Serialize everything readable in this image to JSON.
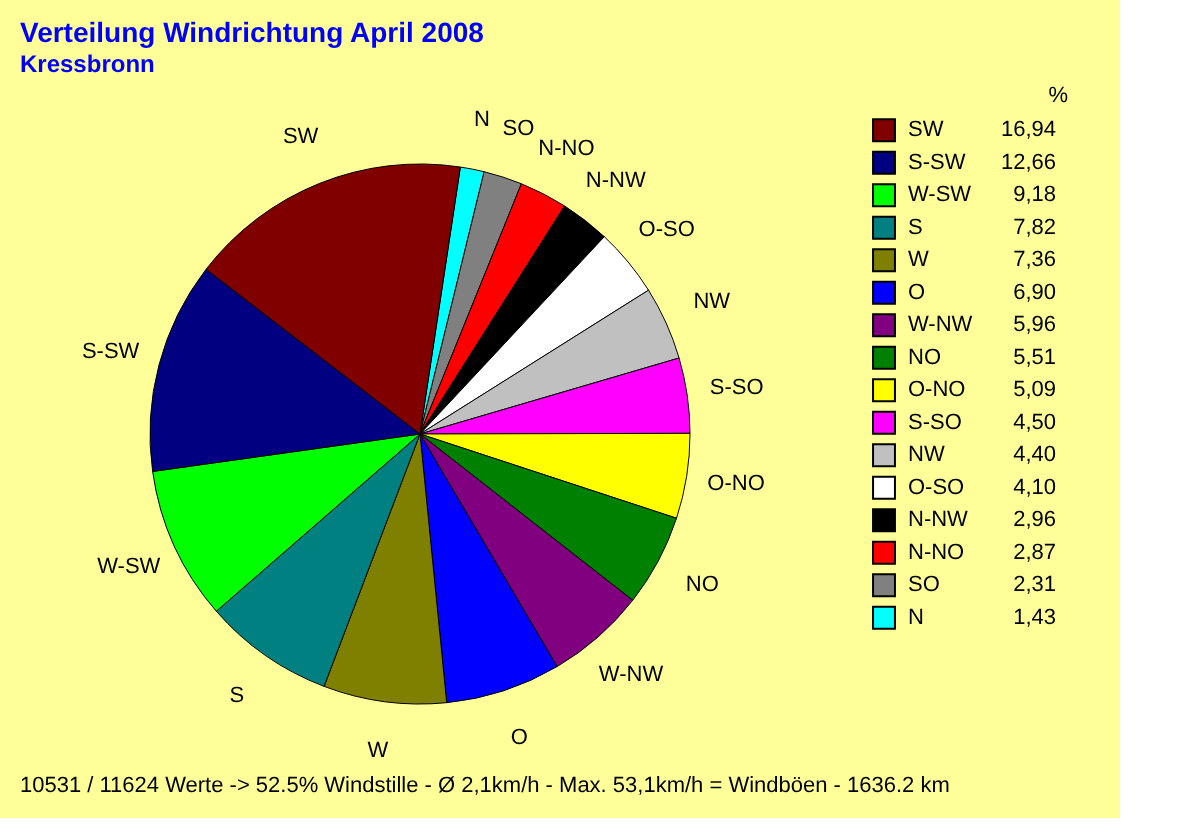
{
  "chart_data": {
    "type": "pie",
    "title": "Verteilung Windrichtung   April 2008",
    "subtitle": "Kressbronn",
    "legend_title": "%",
    "legend": "right",
    "categories": [
      "N",
      "SO",
      "N-NO",
      "N-NW",
      "O-SO",
      "NW",
      "S-SO",
      "O-NO",
      "NO",
      "W-NW",
      "O",
      "W",
      "S",
      "W-SW",
      "S-SW",
      "SW"
    ],
    "values": [
      1.43,
      2.31,
      2.87,
      2.96,
      4.1,
      4.4,
      4.5,
      5.09,
      5.51,
      5.96,
      6.9,
      7.36,
      7.82,
      9.18,
      12.66,
      16.94
    ],
    "value_labels": [
      "1,43",
      "2,31",
      "2,87",
      "2,96",
      "4,10",
      "4,40",
      "4,50",
      "5,09",
      "5,51",
      "5,96",
      "6,90",
      "7,36",
      "7,82",
      "9,18",
      "12,66",
      "16,94"
    ],
    "colors": [
      "#00ffff",
      "#808080",
      "#ff0000",
      "#000000",
      "#ffffff",
      "#c0c0c0",
      "#ff00ff",
      "#ffff00",
      "#008000",
      "#800080",
      "#0000ff",
      "#808000",
      "#008080",
      "#00ff00",
      "#000080",
      "#800000"
    ],
    "annotations": [
      "10531 / 11624 Werte  -> 52.5% Windstille   -   Ø 2,1km/h  -  Max. 53,1km/h = Windböen   -   1636.2 km"
    ]
  }
}
